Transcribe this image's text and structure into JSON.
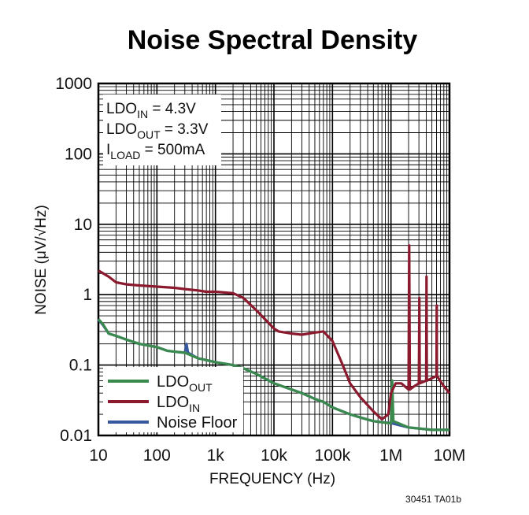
{
  "chart_data": {
    "type": "line",
    "title": "Noise Spectral Density",
    "xlabel": "FREQUENCY (Hz)",
    "ylabel": "NOISE (μV/√Hz)",
    "x_scale": "log",
    "y_scale": "log",
    "xlim": [
      10,
      10000000
    ],
    "ylim": [
      0.01,
      1000
    ],
    "x_tick_labels": [
      "10",
      "100",
      "1k",
      "10k",
      "100k",
      "1M",
      "10M"
    ],
    "y_tick_labels": [
      "1000",
      "100",
      "10",
      "1",
      "0.1",
      "0.01"
    ],
    "grid": true,
    "legend_position": "bottom-left",
    "conditions": [
      {
        "main": "LDO",
        "sub": "IN",
        "rest": " = 4.3V"
      },
      {
        "main": "LDO",
        "sub": "OUT",
        "rest": " = 3.3V"
      },
      {
        "main": "I",
        "sub": "LOAD",
        "rest": " = 500mA"
      }
    ],
    "series": [
      {
        "name": "LDO",
        "name_sub": "OUT",
        "color": "#3a8a4e",
        "points": [
          [
            10,
            0.45
          ],
          [
            12,
            0.38
          ],
          [
            15,
            0.28
          ],
          [
            20,
            0.26
          ],
          [
            30,
            0.23
          ],
          [
            50,
            0.2
          ],
          [
            100,
            0.18
          ],
          [
            150,
            0.16
          ],
          [
            200,
            0.155
          ],
          [
            300,
            0.15
          ],
          [
            500,
            0.125
          ],
          [
            1000,
            0.11
          ],
          [
            2000,
            0.1
          ],
          [
            3000,
            0.09
          ],
          [
            5000,
            0.075
          ],
          [
            10000,
            0.055
          ],
          [
            20000,
            0.045
          ],
          [
            30000,
            0.04
          ],
          [
            50000,
            0.033
          ],
          [
            70000,
            0.03
          ],
          [
            100000,
            0.025
          ],
          [
            200000,
            0.02
          ],
          [
            300000,
            0.018
          ],
          [
            500000,
            0.016
          ],
          [
            900000,
            0.015
          ],
          [
            1000000,
            0.015
          ],
          [
            1050000,
            0.06
          ],
          [
            1100000,
            0.016
          ],
          [
            2000000,
            0.013
          ],
          [
            5000000,
            0.012
          ],
          [
            10000000,
            0.012
          ]
        ]
      },
      {
        "name": "LDO",
        "name_sub": "IN",
        "color": "#8b1a2e",
        "points": [
          [
            10,
            2.2
          ],
          [
            15,
            1.8
          ],
          [
            20,
            1.5
          ],
          [
            30,
            1.4
          ],
          [
            50,
            1.35
          ],
          [
            100,
            1.3
          ],
          [
            200,
            1.25
          ],
          [
            300,
            1.2
          ],
          [
            500,
            1.15
          ],
          [
            700,
            1.1
          ],
          [
            1000,
            1.1
          ],
          [
            2000,
            1.05
          ],
          [
            3000,
            0.9
          ],
          [
            5000,
            0.6
          ],
          [
            7000,
            0.45
          ],
          [
            10000,
            0.33
          ],
          [
            12000,
            0.3
          ],
          [
            20000,
            0.28
          ],
          [
            30000,
            0.27
          ],
          [
            50000,
            0.29
          ],
          [
            70000,
            0.3
          ],
          [
            100000,
            0.22
          ],
          [
            150000,
            0.1
          ],
          [
            200000,
            0.055
          ],
          [
            300000,
            0.035
          ],
          [
            500000,
            0.022
          ],
          [
            700000,
            0.017
          ],
          [
            900000,
            0.02
          ],
          [
            1000000,
            0.04
          ],
          [
            1200000,
            0.055
          ],
          [
            1500000,
            0.055
          ],
          [
            2000000,
            0.045
          ],
          [
            2050000,
            5.0
          ],
          [
            2100000,
            0.045
          ],
          [
            2500000,
            0.05
          ],
          [
            3000000,
            0.055
          ],
          [
            3050000,
            0.9
          ],
          [
            3100000,
            0.055
          ],
          [
            4000000,
            0.06
          ],
          [
            4050000,
            1.8
          ],
          [
            4100000,
            0.06
          ],
          [
            5000000,
            0.065
          ],
          [
            6000000,
            0.07
          ],
          [
            6050000,
            0.7
          ],
          [
            6100000,
            0.07
          ],
          [
            8000000,
            0.05
          ],
          [
            10000000,
            0.04
          ]
        ]
      },
      {
        "name": "Noise Floor",
        "name_sub": "",
        "color": "#3858a0",
        "points": [
          [
            10,
            0.44
          ],
          [
            12,
            0.37
          ],
          [
            15,
            0.28
          ],
          [
            20,
            0.26
          ],
          [
            30,
            0.23
          ],
          [
            50,
            0.2
          ],
          [
            100,
            0.18
          ],
          [
            150,
            0.16
          ],
          [
            200,
            0.155
          ],
          [
            300,
            0.15
          ],
          [
            320,
            0.2
          ],
          [
            340,
            0.15
          ],
          [
            500,
            0.125
          ],
          [
            1000,
            0.11
          ],
          [
            2000,
            0.1
          ],
          [
            3000,
            0.09
          ],
          [
            5000,
            0.075
          ],
          [
            10000,
            0.055
          ],
          [
            20000,
            0.045
          ],
          [
            30000,
            0.04
          ],
          [
            50000,
            0.033
          ],
          [
            70000,
            0.03
          ],
          [
            100000,
            0.025
          ],
          [
            200000,
            0.02
          ],
          [
            300000,
            0.018
          ],
          [
            500000,
            0.016
          ],
          [
            1000000,
            0.015
          ],
          [
            2000000,
            0.013
          ],
          [
            5000000,
            0.012
          ],
          [
            10000000,
            0.012
          ]
        ]
      }
    ],
    "footnote": "30451 TA01b"
  }
}
